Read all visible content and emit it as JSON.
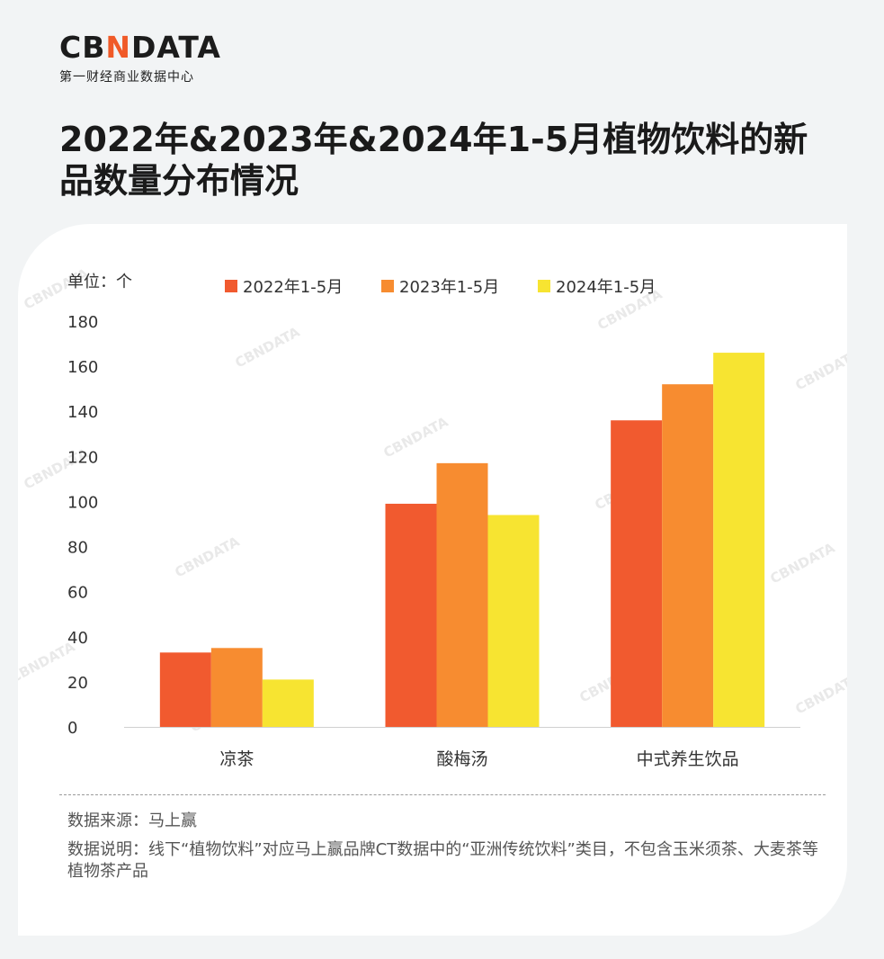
{
  "logo": {
    "main_left": "CB",
    "main_accent": "N",
    "main_right": "DATA",
    "sub": "第一财经商业数据中心"
  },
  "title": "2022年&2023年&2024年1-5月植物饮料的新品数量分布情况",
  "chart_data": {
    "type": "bar",
    "unit_label": "单位：个",
    "categories": [
      "凉茶",
      "酸梅汤",
      "中式养生饮品"
    ],
    "series": [
      {
        "name": "2022年1-5月",
        "color": "#f15a2f",
        "values": [
          33,
          99,
          136
        ]
      },
      {
        "name": "2023年1-5月",
        "color": "#f78c30",
        "values": [
          35,
          117,
          152
        ]
      },
      {
        "name": "2024年1-5月",
        "color": "#f7e431",
        "values": [
          21,
          94,
          166
        ]
      }
    ],
    "ylim": [
      0,
      180
    ],
    "yticks": [
      0,
      20,
      40,
      60,
      80,
      100,
      120,
      140,
      160,
      180
    ],
    "legend_position": "top",
    "grid": false
  },
  "footer": {
    "source": "数据来源：马上赢",
    "note": "数据说明：线下“植物饮料”对应马上赢品牌CT数据中的“亚洲传统饮料”类目，不包含玉米须茶、大麦茶等植物茶产品"
  },
  "watermark": "CBNDATA"
}
